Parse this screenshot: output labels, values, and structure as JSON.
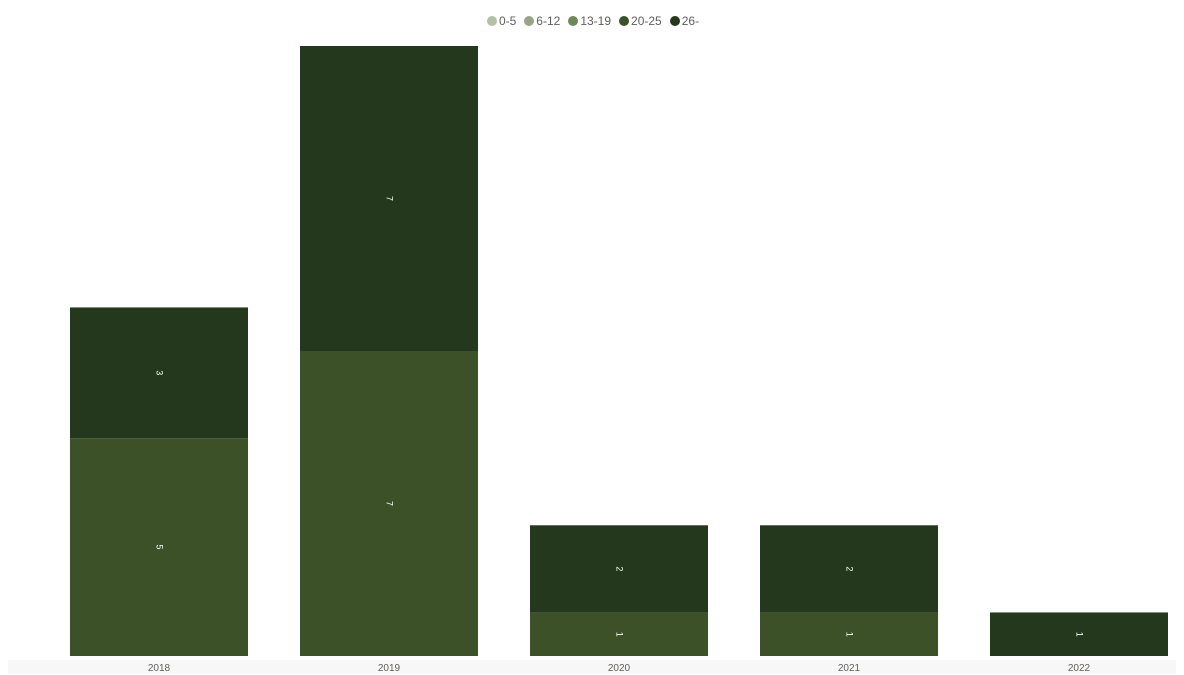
{
  "chart_data": {
    "type": "bar",
    "stacked": true,
    "categories": [
      "2018",
      "2019",
      "2020",
      "2021",
      "2022"
    ],
    "series": [
      {
        "name": "0-5",
        "color": "#b4bfa6",
        "values": [
          0,
          0,
          0,
          0,
          0
        ]
      },
      {
        "name": "6-12",
        "color": "#96a487",
        "values": [
          0,
          0,
          0,
          0,
          0
        ]
      },
      {
        "name": "13-19",
        "color": "#6f8859",
        "values": [
          0,
          0,
          0,
          0,
          0
        ]
      },
      {
        "name": "20-25",
        "color": "#3d5129",
        "values": [
          5,
          7,
          1,
          1,
          0
        ]
      },
      {
        "name": "26-",
        "color": "#23381c",
        "values": [
          3,
          7,
          2,
          2,
          1
        ]
      }
    ],
    "ylim": [
      0,
      14
    ],
    "grid": false,
    "legend_position": "top-center",
    "data_labels": true
  }
}
